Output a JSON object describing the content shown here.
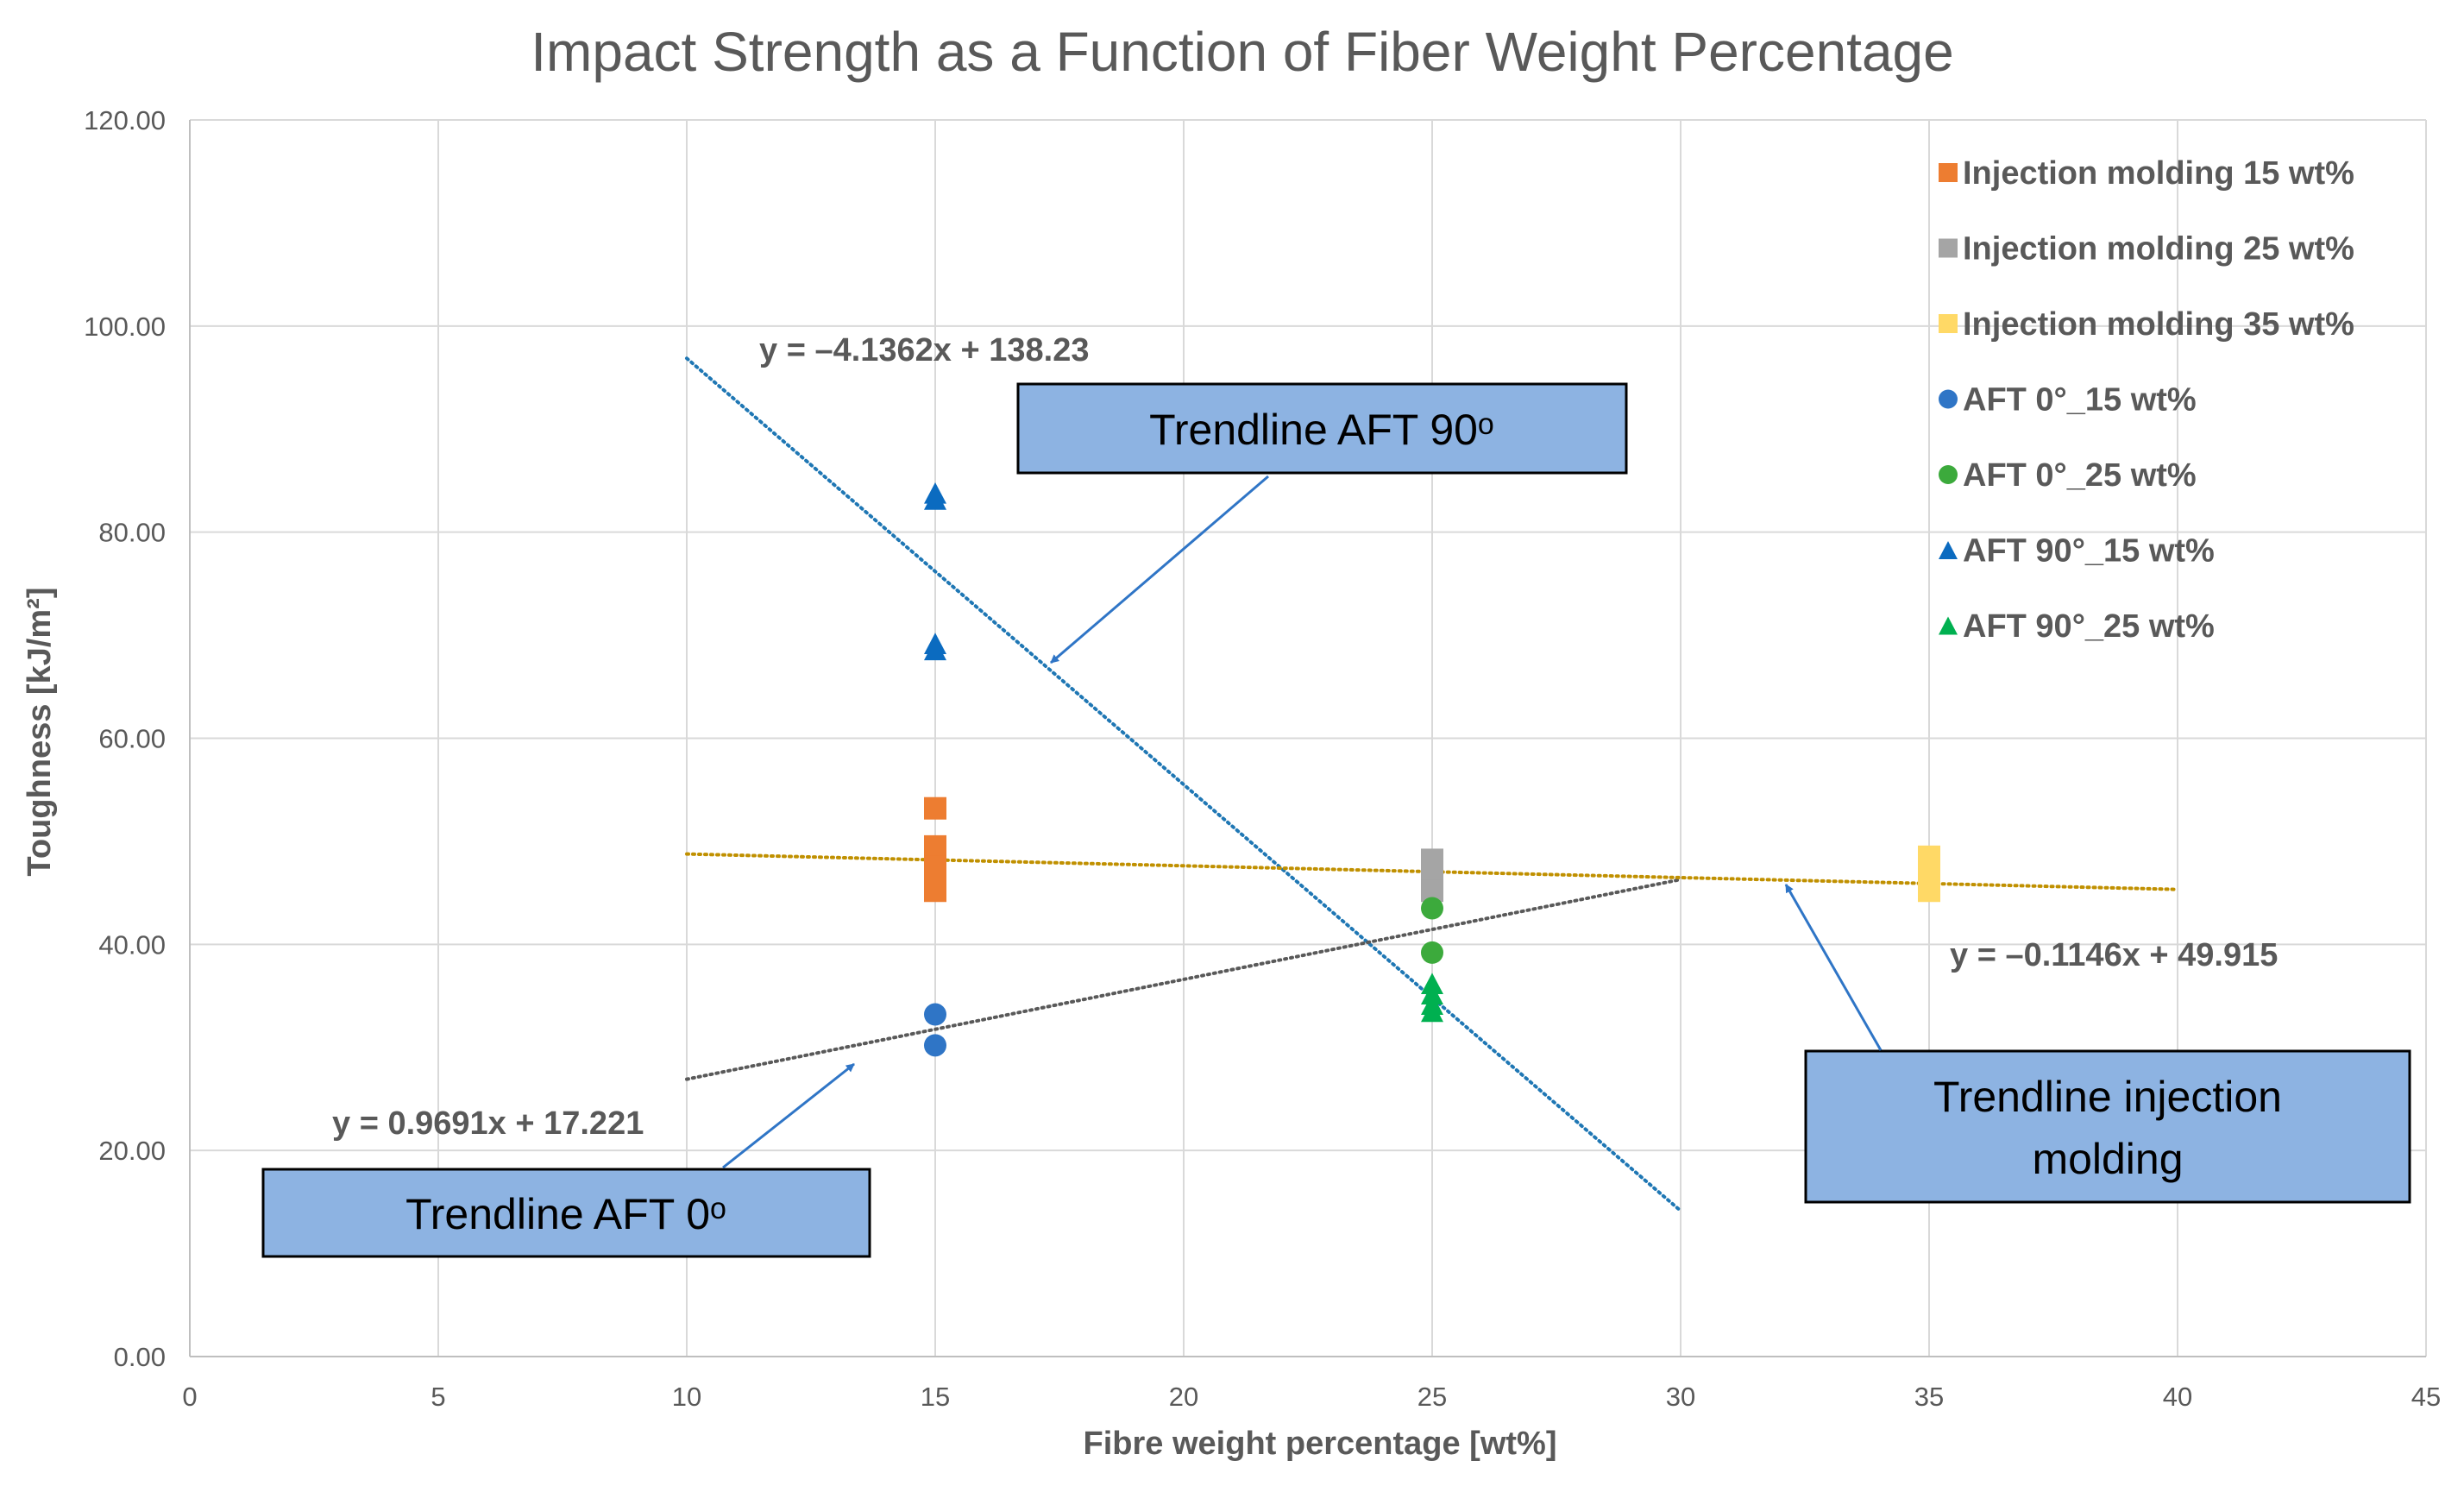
{
  "chart_data": {
    "type": "scatter",
    "title": "Impact Strength as a Function of Fiber Weight Percentage",
    "xlabel": "Fibre weight percentage [wt%]",
    "ylabel": "Toughness [kJ/m²]",
    "xlim": [
      0,
      45
    ],
    "ylim": [
      0,
      120
    ],
    "xticks": [
      0,
      5,
      10,
      15,
      20,
      25,
      30,
      35,
      40,
      45
    ],
    "xtick_labels": [
      "0",
      "5",
      "10",
      "15",
      "20",
      "25",
      "30",
      "35",
      "40",
      "45"
    ],
    "yticks": [
      0,
      20,
      40,
      60,
      80,
      100,
      120
    ],
    "ytick_labels": [
      "0.00",
      "20.00",
      "40.00",
      "60.00",
      "80.00",
      "100.00",
      "120.00"
    ],
    "grid": true,
    "legend_position": "top-right",
    "series": [
      {
        "name": "Injection molding 15 wt%",
        "marker": "square",
        "color": "#ED7D31",
        "x": [
          15,
          15,
          15,
          15,
          15
        ],
        "y": [
          53.2,
          49.5,
          47.5,
          46.5,
          45.2
        ]
      },
      {
        "name": "Injection molding 25 wt%",
        "marker": "square",
        "color": "#A5A5A5",
        "x": [
          25,
          25,
          25,
          25
        ],
        "y": [
          48.2,
          47.2,
          46.2,
          45.2
        ]
      },
      {
        "name": "Injection molding 35 wt%",
        "marker": "square",
        "color": "#FFD966",
        "x": [
          35,
          35,
          35,
          35
        ],
        "y": [
          48.5,
          47.5,
          46.5,
          45.2
        ]
      },
      {
        "name": "AFT 0°_15 wt%",
        "marker": "circle",
        "color": "#2F75C6",
        "x": [
          15,
          15
        ],
        "y": [
          33.2,
          30.2
        ]
      },
      {
        "name": "AFT 0°_25 wt%",
        "marker": "circle",
        "color": "#3CAA3C",
        "x": [
          25,
          25
        ],
        "y": [
          43.5,
          39.2
        ]
      },
      {
        "name": "AFT 90°_15 wt%",
        "marker": "triangle",
        "color": "#0B6BC0",
        "x": [
          15,
          15,
          15,
          15
        ],
        "y": [
          83.8,
          83.2,
          69.2,
          68.6
        ]
      },
      {
        "name": "AFT 90°_25 wt%",
        "marker": "triangle",
        "color": "#00B050",
        "x": [
          25,
          25,
          25,
          25
        ],
        "y": [
          36.2,
          35.2,
          34.2,
          33.5
        ]
      }
    ],
    "trendlines": [
      {
        "name": "AFT 90°",
        "slope": -4.1362,
        "intercept": 138.23,
        "x_range": [
          10,
          30
        ],
        "color": "#1F77B4"
      },
      {
        "name": "AFT 0°",
        "slope": 0.9691,
        "intercept": 17.221,
        "x_range": [
          10,
          30
        ],
        "color": "#595959"
      },
      {
        "name": "injection molding",
        "slope": -0.1146,
        "intercept": 49.915,
        "x_range": [
          10,
          40
        ],
        "color": "#C09000"
      }
    ],
    "annotations": {
      "eq_aft90": "y = –4.1362x + 138.23",
      "eq_aft0": "y = 0.9691x + 17.221",
      "eq_im": "y = –0.1146x + 49.915",
      "callout_aft90": "Trendline AFT 90ᵒ",
      "callout_aft0": "Trendline AFT 0ᵒ",
      "callout_im_line1": "Trendline injection",
      "callout_im_line2": "molding"
    }
  }
}
